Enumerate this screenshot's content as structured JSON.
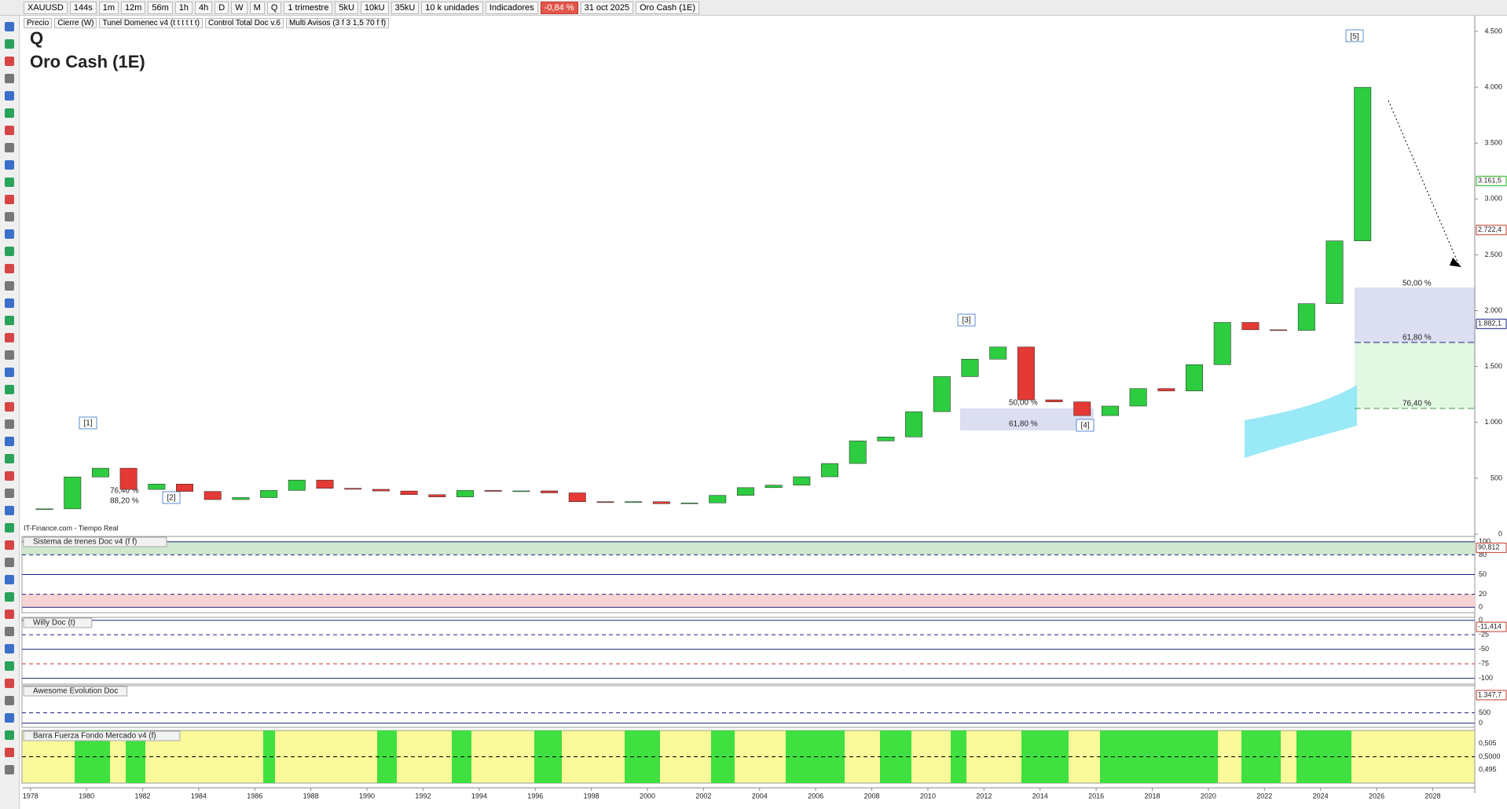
{
  "toolbar": [
    "XAUUSD",
    "144s",
    "1m",
    "12m",
    "56m",
    "1h",
    "4h",
    "D",
    "W",
    "M",
    "Q",
    "1 trimestre",
    "5kU",
    "10kU",
    "35kU",
    "10 k unidades",
    "Indicadores",
    "-0,84 %",
    "31 oct 2025",
    "Oro Cash (1E)"
  ],
  "legend_row": [
    "Precio",
    "Cierre (W)",
    "Tunel Domenec v4 (t t t t t t)",
    "Control Total Doc v.6",
    "Multi Avisos (3 f 3 1,5 70 f f)"
  ],
  "chart_data": {
    "type": "candlestick",
    "title": "Q",
    "subtitle": "Oro Cash (1E)",
    "source": "IT-Finance.com - Tiempo Real",
    "x": [
      1978,
      1979,
      1980,
      1981,
      1982,
      1983,
      1984,
      1985,
      1986,
      1987,
      1988,
      1989,
      1990,
      1991,
      1992,
      1993,
      1994,
      1995,
      1996,
      1997,
      1998,
      1999,
      2000,
      2001,
      2002,
      2003,
      2004,
      2005,
      2006,
      2007,
      2008,
      2009,
      2010,
      2011,
      2012,
      2013,
      2014,
      2015,
      2016,
      2017,
      2018,
      2019,
      2020,
      2021,
      2022,
      2023,
      2024,
      2025
    ],
    "values": [
      226,
      512,
      590,
      400,
      448,
      382,
      309,
      327,
      391,
      484,
      410,
      401,
      386,
      353,
      333,
      391,
      383,
      387,
      369,
      290,
      288,
      290,
      272,
      279,
      347,
      416,
      438,
      513,
      632,
      834,
      870,
      1096,
      1410,
      1566,
      1675,
      1202,
      1184,
      1061,
      1146,
      1303,
      1281,
      1517,
      1895,
      1829,
      1824,
      2063,
      2625,
      4000
    ],
    "xlim": [
      1977.7,
      2029.5
    ],
    "xticks": [
      1978,
      1980,
      1982,
      1984,
      1986,
      1988,
      1990,
      1992,
      1994,
      1996,
      1998,
      2000,
      2002,
      2004,
      2006,
      2008,
      2010,
      2012,
      2014,
      2016,
      2018,
      2020,
      2022,
      2024,
      2026,
      2028
    ],
    "ylim": [
      0,
      4500
    ],
    "yticks": [
      0,
      500,
      {
        "value": 1000,
        "label": "1.000"
      },
      {
        "value": 1500,
        "label": "1.500"
      },
      {
        "value": 2000,
        "label": "2.000"
      },
      {
        "value": 2500,
        "label": "2.500"
      },
      {
        "value": 3000,
        "label": "3.000"
      },
      {
        "value": 3500,
        "label": "3.500"
      },
      {
        "value": 4000,
        "label": "4.000"
      },
      {
        "value": 4500,
        "label": "4.500"
      }
    ],
    "price_tags": [
      {
        "value": 3161.5,
        "label": "3.161,5",
        "color": "#1bb31b"
      },
      {
        "value": 2722.4,
        "label": "2.722,4",
        "color": "#c0392b"
      },
      {
        "value": 1882.1,
        "label": "1.882,1",
        "color": "#1a237e"
      }
    ],
    "waves": [
      "[1]",
      "[2]",
      "[3]",
      "[4]",
      "[5]"
    ],
    "fib_labels": [
      "76,40 %",
      "88,20 %",
      "50,00 %",
      "61,80 %",
      "50,00 %",
      "61,80 %",
      "76,40 %"
    ]
  },
  "indicators": [
    {
      "title": "Sistema de trenes Doc v4 (f f)",
      "ylim": [
        -8,
        108
      ],
      "yticks": [
        0,
        20,
        50,
        80,
        100
      ],
      "marker": {
        "value": 90.812,
        "label": "90,812"
      }
    },
    {
      "title": "Willy Doc (t)",
      "ylim": [
        -110,
        5
      ],
      "yticks": [
        0,
        -25,
        -50,
        -75,
        -100
      ],
      "marker": {
        "value": -11.414,
        "label": "-11,414"
      }
    },
    {
      "title": "Awesome Evolution Doc",
      "ylim": [
        -200,
        1800
      ],
      "yticks": [
        0,
        500
      ],
      "marker": {
        "value": 1347.7,
        "label": "1.347,7"
      }
    },
    {
      "title": "Barra Fuerza Fondo Mercado v4 (f)",
      "ylim": [
        0.49,
        0.51
      ],
      "yticks": [
        {
          "value": 0.495,
          "label": "0,495"
        },
        {
          "value": 0.5,
          "label": "0,5000"
        },
        {
          "value": 0.505,
          "label": "0,505"
        }
      ]
    }
  ]
}
